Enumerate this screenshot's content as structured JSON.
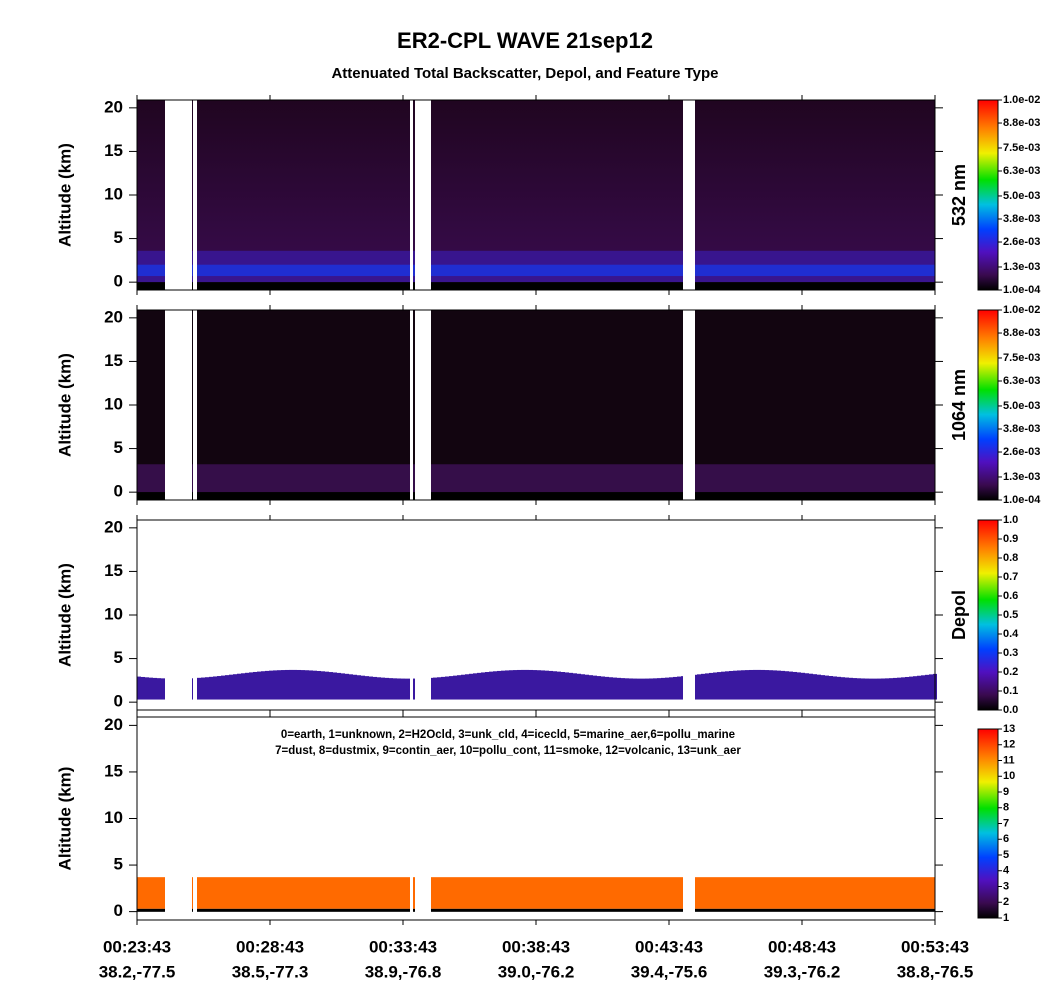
{
  "figure": {
    "title": "ER2-CPL WAVE 21sep12",
    "subtitle": "Attenuated Total Backscatter, Depol, and Feature Type",
    "x_categories": [
      "00:23:43",
      "00:28:43",
      "00:33:43",
      "00:38:43",
      "00:43:43",
      "00:48:43",
      "00:53:43"
    ],
    "x_sublabels": [
      "38.2,-77.5",
      "38.5,-77.3",
      "38.9,-76.8",
      "39.0,-76.2",
      "39.4,-75.6",
      "39.3,-76.2",
      "38.8,-76.5"
    ]
  },
  "chart_data": [
    {
      "type": "heatmap",
      "ylabel": "Altitude (km)",
      "ylim": [
        -0.9,
        20.9
      ],
      "yticks": [
        0,
        5,
        10,
        15,
        20
      ],
      "colorbar": {
        "label": "532 nm",
        "lim": [
          0.0001,
          0.01
        ],
        "ticks": [
          {
            "value": 0.0001,
            "label": "1.0e-04"
          },
          {
            "value": 0.0013,
            "label": "1.3e-03"
          },
          {
            "value": 0.0026,
            "label": "2.6e-03"
          },
          {
            "value": 0.0038,
            "label": "3.8e-03"
          },
          {
            "value": 0.005,
            "label": "5.0e-03"
          },
          {
            "value": 0.0063,
            "label": "6.3e-03"
          },
          {
            "value": 0.0075,
            "label": "7.5e-03"
          },
          {
            "value": 0.0088,
            "label": "8.8e-03"
          },
          {
            "value": 0.01,
            "label": "1.0e-02"
          }
        ]
      }
    },
    {
      "type": "heatmap",
      "ylabel": "Altitude (km)",
      "ylim": [
        -0.9,
        20.9
      ],
      "yticks": [
        0,
        5,
        10,
        15,
        20
      ],
      "colorbar": {
        "label": "1064 nm",
        "lim": [
          0.0001,
          0.01
        ],
        "ticks": [
          {
            "value": 0.0001,
            "label": "1.0e-04"
          },
          {
            "value": 0.0013,
            "label": "1.3e-03"
          },
          {
            "value": 0.0026,
            "label": "2.6e-03"
          },
          {
            "value": 0.0038,
            "label": "3.8e-03"
          },
          {
            "value": 0.005,
            "label": "5.0e-03"
          },
          {
            "value": 0.0063,
            "label": "6.3e-03"
          },
          {
            "value": 0.0075,
            "label": "7.5e-03"
          },
          {
            "value": 0.0088,
            "label": "8.8e-03"
          },
          {
            "value": 0.01,
            "label": "1.0e-02"
          }
        ]
      }
    },
    {
      "type": "heatmap",
      "ylabel": "Altitude (km)",
      "ylim": [
        -0.9,
        20.9
      ],
      "yticks": [
        0,
        5,
        10,
        15,
        20
      ],
      "colorbar": {
        "label": "Depol",
        "lim": [
          0,
          1
        ],
        "ticks": [
          {
            "value": 0,
            "label": "0.0"
          },
          0.1,
          0.2,
          0.3,
          0.4,
          0.5,
          0.6,
          0.7,
          0.8,
          0.9,
          {
            "value": 1,
            "label": "1.0"
          }
        ]
      }
    },
    {
      "type": "heatmap",
      "ylabel": "Altitude (km)",
      "ylim": [
        -0.9,
        20.9
      ],
      "yticks": [
        0,
        5,
        10,
        15,
        20
      ],
      "annotations": [
        "0=earth, 1=unknown, 2=H2Ocld, 3=unk_cld, 4=icecld, 5=marine_aer,6=pollu_marine",
        "7=dust, 8=dustmix, 9=contin_aer, 10=pollu_cont, 11=smoke, 12=volcanic, 13=unk_aer"
      ],
      "colorbar": {
        "lim": [
          1,
          13
        ],
        "ticks": [
          1,
          2,
          3,
          4,
          5,
          6,
          7,
          8,
          9,
          10,
          11,
          12,
          13
        ]
      }
    }
  ]
}
